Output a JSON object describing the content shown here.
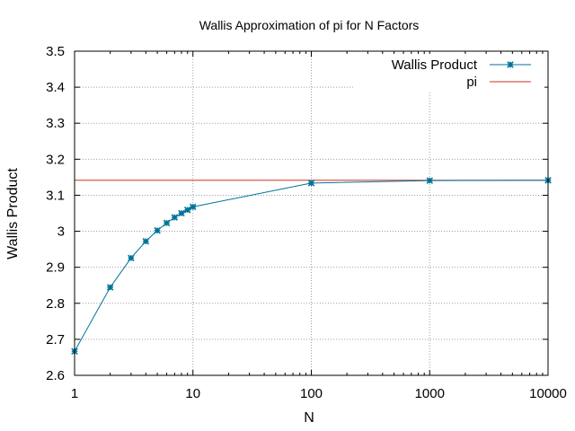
{
  "chart_data": {
    "type": "line",
    "title": "Wallis Approximation of pi for N Factors",
    "xlabel": "N",
    "ylabel": "Wallis Product",
    "xscale": "log",
    "xlim": [
      1,
      10000
    ],
    "ylim": [
      2.6,
      3.5
    ],
    "x_ticks": [
      1,
      10,
      100,
      1000,
      10000
    ],
    "x_tick_labels": [
      "1",
      "10",
      "100",
      "1000",
      "10000"
    ],
    "y_ticks": [
      2.6,
      2.7,
      2.8,
      2.9,
      3.0,
      3.1,
      3.2,
      3.3,
      3.4,
      3.5
    ],
    "y_tick_labels": [
      "2.6",
      "2.7",
      "2.8",
      "2.9",
      "3",
      "3.1",
      "3.2",
      "3.3",
      "3.4",
      "3.5"
    ],
    "grid": true,
    "legend_position": "top-right",
    "series": [
      {
        "name": "Wallis Product",
        "color": "#00739a",
        "marker": "star",
        "x": [
          1,
          2,
          3,
          4,
          5,
          6,
          7,
          8,
          9,
          10,
          100,
          1000,
          10000
        ],
        "y": [
          2.6667,
          2.8444,
          2.9257,
          2.9722,
          3.0022,
          3.023,
          3.0385,
          3.0501,
          3.0594,
          3.0677,
          3.1338,
          3.1408,
          3.1415
        ]
      },
      {
        "name": "pi",
        "color": "#d03020",
        "marker": "none",
        "constant": 3.14159
      }
    ]
  }
}
